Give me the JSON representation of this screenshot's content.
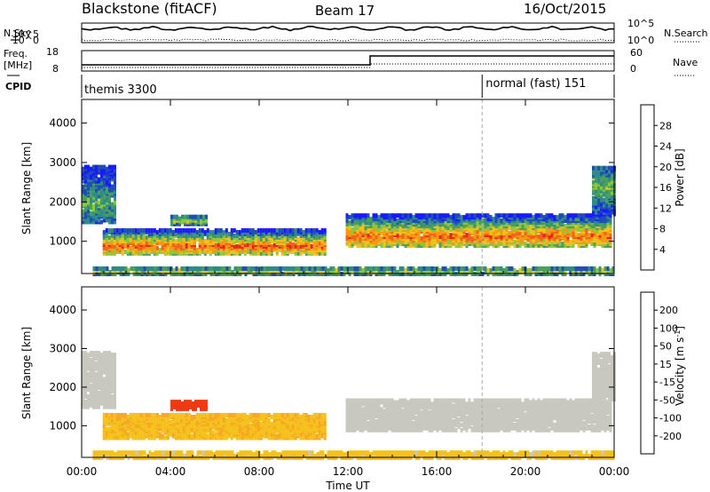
{
  "header": {
    "title": "Blackstone (fitACF)",
    "beam": "Beam 17",
    "date": "16/Oct/2015"
  },
  "left_labels": {
    "nsky": "N.Sky",
    "freq": "Freq.",
    "freq_unit": "[MHz]",
    "cpid": "CPID"
  },
  "right_labels": {
    "nsearch": "N.Search",
    "nave": "Nave"
  },
  "noise_axis": {
    "left_ticks": [
      "10^5",
      "10^0"
    ],
    "right_ticks": [
      "10^5",
      "10^0"
    ]
  },
  "freq_axis": {
    "left_ticks": [
      "18",
      "8"
    ],
    "right_ticks": [
      "60",
      "0"
    ]
  },
  "cpid": [
    {
      "label": "themis 3300",
      "start_hour": 0
    },
    {
      "label": "normal (fast) 151",
      "start_hour": 18.05
    }
  ],
  "chart_data": [
    {
      "type": "heatmap",
      "panel": "power",
      "ylabel": "Slant Range [km]",
      "yticks": [
        1000,
        2000,
        3000,
        4000
      ],
      "ylim": [
        180,
        4600
      ],
      "xlim": [
        0,
        24
      ],
      "colorbar": {
        "label": "Power [dB]",
        "ticks": [
          "4",
          "8",
          "12",
          "16",
          "20",
          "24",
          "28"
        ],
        "range": [
          0,
          32
        ],
        "colors": [
          "#1a1aff",
          "#1f4fb5",
          "#2f8a8a",
          "#49a05a",
          "#8ec63f",
          "#f2c21c",
          "#f59a12",
          "#f0641a",
          "#e52516",
          "#d00000"
        ]
      },
      "bands": [
        {
          "t0": 0.95,
          "t1": 11.0,
          "lo": 700,
          "hi": 1300,
          "core": 900,
          "level": 0.8
        },
        {
          "t0": 11.9,
          "t1": 23.85,
          "lo": 900,
          "hi": 1700,
          "core": 1150,
          "level": 0.75
        },
        {
          "t0": 4.0,
          "t1": 5.6,
          "lo": 1450,
          "hi": 1650,
          "core": 1550,
          "level": 0.5
        },
        {
          "t0": 0.0,
          "t1": 1.5,
          "lo": 1500,
          "hi": 2900,
          "core": 2000,
          "level": 0.35
        },
        {
          "t0": 23.0,
          "t1": 24.0,
          "lo": 1700,
          "hi": 2900,
          "core": 2400,
          "level": 0.4
        },
        {
          "t0": 0.5,
          "t1": 24.0,
          "lo": 180,
          "hi": 350,
          "core": 250,
          "level": 0.55
        }
      ]
    },
    {
      "type": "heatmap",
      "panel": "velocity",
      "ylabel": "Slant Range [km]",
      "yticks": [
        1000,
        2000,
        3000,
        4000
      ],
      "ylim": [
        180,
        4600
      ],
      "xlim": [
        0,
        24
      ],
      "xlabel": "Time UT",
      "xticks": [
        "00:00",
        "04:00",
        "08:00",
        "12:00",
        "16:00",
        "20:00",
        "00:00"
      ],
      "colorbar": {
        "label": "Velocity [m s^-1]",
        "ticks": [
          "200",
          "100",
          "50",
          "15",
          "-15",
          "-50",
          "-100",
          "-200"
        ],
        "range": [
          -250,
          250
        ],
        "colors": [
          "#d80000",
          "#ee3a10",
          "#f4781a",
          "#f6a823",
          "#f5c21d",
          "#c8c8c0",
          "#c8c8c0",
          "#5fd24a",
          "#2f8c5a",
          "#1f58a8",
          "#1a2ad8"
        ]
      },
      "bands": [
        {
          "t0": 0.95,
          "t1": 11.0,
          "lo": 700,
          "hi": 1300,
          "velocity": -60
        },
        {
          "t0": 11.9,
          "t1": 23.85,
          "lo": 900,
          "hi": 1700,
          "velocity": 0
        },
        {
          "t0": 4.0,
          "t1": 5.6,
          "lo": 1450,
          "hi": 1650,
          "velocity": -180
        },
        {
          "t0": 0.0,
          "t1": 1.5,
          "lo": 1500,
          "hi": 2900,
          "velocity": 0
        },
        {
          "t0": 23.0,
          "t1": 24.0,
          "lo": 1700,
          "hi": 2900,
          "velocity": 0
        },
        {
          "t0": 0.5,
          "t1": 24.0,
          "lo": 180,
          "hi": 350,
          "velocity": -40
        }
      ]
    }
  ]
}
